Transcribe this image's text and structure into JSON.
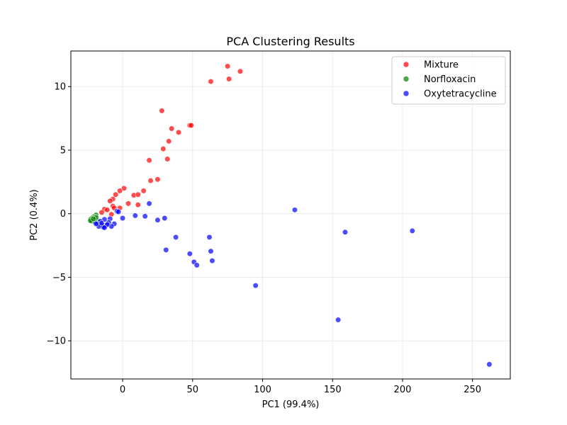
{
  "chart_data": {
    "type": "scatter",
    "title": "PCA Clustering Results",
    "xlabel": "PC1 (99.4%)",
    "ylabel": "PC2 (0.4%)",
    "xlim": [
      -37,
      277
    ],
    "ylim": [
      -13.0,
      12.8
    ],
    "xticks": [
      0,
      50,
      100,
      150,
      200,
      250
    ],
    "yticks": [
      -10,
      -5,
      0,
      5,
      10
    ],
    "xtick_labels": [
      "0",
      "50",
      "100",
      "150",
      "200",
      "250"
    ],
    "ytick_labels": [
      "−10",
      "−5",
      "0",
      "5",
      "10"
    ],
    "grid": true,
    "legend_position": "top-right",
    "series": [
      {
        "name": "Mixture",
        "color": "#ff0000",
        "x": [
          75,
          84,
          76,
          63,
          28,
          48,
          49,
          35,
          40,
          33,
          29,
          19,
          32,
          25,
          20,
          15,
          8,
          11,
          1,
          -2,
          -5,
          -7,
          -9,
          -7,
          -2,
          -6,
          -13,
          -11,
          -15,
          -8,
          11,
          4
        ],
        "y": [
          11.6,
          11.2,
          10.6,
          10.4,
          8.1,
          6.95,
          6.95,
          6.7,
          6.4,
          5.7,
          5.1,
          4.2,
          4.3,
          2.7,
          2.6,
          1.8,
          1.45,
          1.5,
          2.0,
          1.8,
          1.5,
          1.15,
          1.0,
          0.6,
          0.45,
          0.45,
          0.35,
          0.3,
          0.1,
          -0.05,
          0.7,
          0.8
        ]
      },
      {
        "name": "Norfloxacin",
        "color": "#008000",
        "x": [
          -19,
          -21,
          -22,
          -23,
          -20,
          -18,
          -22,
          -20,
          -19,
          -23,
          -21
        ],
        "y": [
          -0.1,
          -0.25,
          -0.35,
          -0.45,
          -0.5,
          -0.55,
          -0.6,
          -0.65,
          -0.3,
          -0.55,
          -0.4
        ]
      },
      {
        "name": "Oxytetracycline",
        "color": "#0000ff",
        "x": [
          123,
          159,
          207,
          19,
          9,
          16,
          0,
          30,
          -4,
          -3,
          -9,
          -6,
          -13,
          -16,
          -18,
          -15,
          -17,
          -12,
          -14,
          -10,
          -8,
          -19,
          -15,
          -11,
          -13,
          25,
          38,
          62,
          63,
          64,
          31,
          48,
          51,
          53,
          95,
          154,
          262
        ],
        "y": [
          0.3,
          -1.45,
          -1.35,
          0.8,
          -0.15,
          -0.2,
          -0.35,
          -0.35,
          0.2,
          0.15,
          -0.4,
          -0.8,
          -0.45,
          -0.6,
          -0.8,
          -0.9,
          -1.0,
          -0.95,
          -1.05,
          -0.7,
          -1.0,
          -0.8,
          -0.75,
          -0.85,
          -1.1,
          -0.5,
          -1.85,
          -1.85,
          -2.95,
          -3.7,
          -2.85,
          -3.15,
          -3.8,
          -4.05,
          -5.65,
          -8.35,
          -11.85
        ]
      }
    ]
  }
}
